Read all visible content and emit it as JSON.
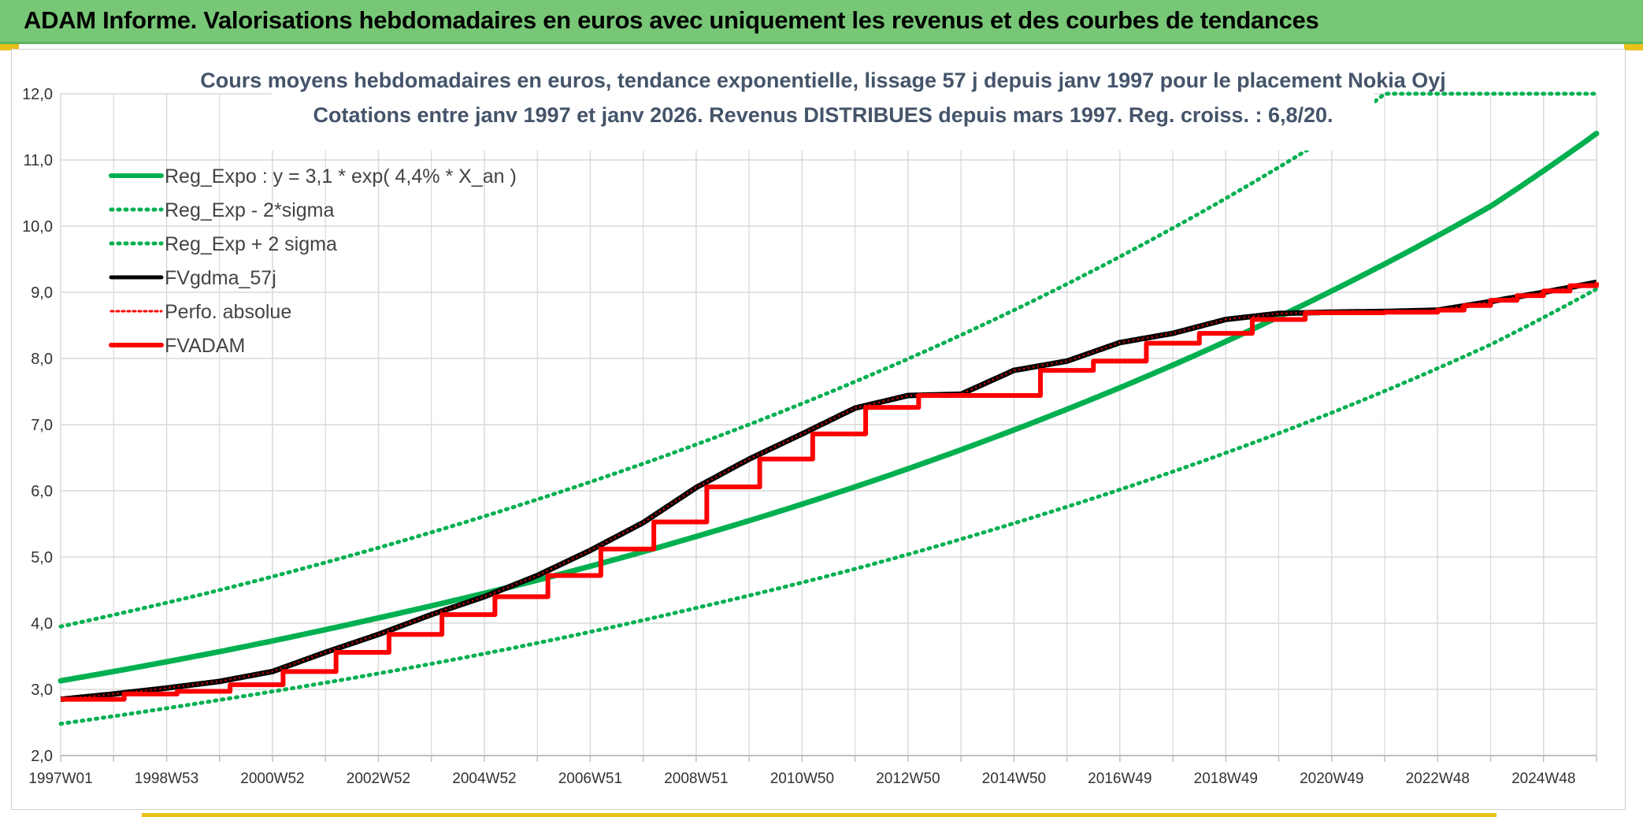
{
  "header": {
    "title": "ADAM Informe. Valorisations hebdomadaires en euros avec uniquement les revenus et des courbes de tendances"
  },
  "colors": {
    "header_bg": "#77c777",
    "green": "#00b050",
    "red": "#ff0000",
    "black": "#000000",
    "grid": "#d9d9d9"
  },
  "chart_data": {
    "type": "line",
    "title_lines": [
      "Cours moyens hebdomadaires en euros, tendance exponentielle, lissage 57 j depuis janv 1997 pour le placement Nokia Oyj",
      "Cotations entre janv 1997 et janv 2026. Revenus DISTRIBUES depuis mars 1997. Reg. croiss. : 6,8/20."
    ],
    "y_ticks": [
      "2,0",
      "3,0",
      "4,0",
      "5,0",
      "6,0",
      "7,0",
      "8,0",
      "9,0",
      "10,0",
      "11,0",
      "12,0"
    ],
    "ylim": [
      2,
      12
    ],
    "x_ticks": [
      {
        "label": "1997W01",
        "year": 1997.0
      },
      {
        "label": "1998W53",
        "year": 1999.0
      },
      {
        "label": "2000W52",
        "year": 2001.0
      },
      {
        "label": "2002W52",
        "year": 2003.0
      },
      {
        "label": "2004W52",
        "year": 2005.0
      },
      {
        "label": "2006W51",
        "year": 2007.0
      },
      {
        "label": "2008W51",
        "year": 2009.0
      },
      {
        "label": "2010W50",
        "year": 2011.0
      },
      {
        "label": "2012W50",
        "year": 2013.0
      },
      {
        "label": "2014W50",
        "year": 2015.0
      },
      {
        "label": "2016W49",
        "year": 2017.0
      },
      {
        "label": "2018W49",
        "year": 2019.0
      },
      {
        "label": "2020W49",
        "year": 2021.0
      },
      {
        "label": "2022W48",
        "year": 2023.0
      },
      {
        "label": "2024W48",
        "year": 2025.0
      }
    ],
    "xlim": [
      1997.0,
      2026.0
    ],
    "grid": true,
    "legend_position": "top-left",
    "series": [
      {
        "name": "Reg_Expo : y = 3,1 * exp( 4,4% *  X_an )",
        "style": "solid-thick",
        "color": "#00b050",
        "x": [
          1997,
          2000,
          2003,
          2006,
          2009,
          2012,
          2015,
          2018,
          2021,
          2024,
          2026
        ],
        "y": [
          3.13,
          3.57,
          4.08,
          4.65,
          5.31,
          6.06,
          6.92,
          7.9,
          9.02,
          10.3,
          11.4
        ]
      },
      {
        "name": "Reg_Exp - 2*sigma",
        "style": "dotted",
        "color": "#00b050",
        "x": [
          1997,
          2000,
          2003,
          2006,
          2009,
          2012,
          2015,
          2018,
          2021,
          2024,
          2026
        ],
        "y": [
          2.48,
          2.84,
          3.24,
          3.7,
          4.23,
          4.82,
          5.51,
          6.29,
          7.18,
          8.21,
          9.05
        ]
      },
      {
        "name": "Reg_Exp + 2 sigma",
        "style": "dotted",
        "color": "#00b050",
        "x": [
          1997,
          2000,
          2003,
          2006,
          2009,
          2012,
          2015,
          2018,
          2021,
          2022,
          2026
        ],
        "y": [
          3.95,
          4.5,
          5.14,
          5.87,
          6.7,
          7.65,
          8.73,
          9.97,
          11.38,
          12.0,
          12.0
        ]
      },
      {
        "name": "FVgdma_57j",
        "style": "solid",
        "color": "#000000",
        "x": [
          1997,
          1998,
          1999,
          2000,
          2001,
          2002,
          2003,
          2004,
          2005,
          2006,
          2007,
          2008,
          2009,
          2010,
          2011,
          2012,
          2013,
          2014,
          2015,
          2016,
          2017,
          2018,
          2019,
          2020,
          2021,
          2022,
          2023,
          2024,
          2025,
          2026
        ],
        "y": [
          2.85,
          2.93,
          3.02,
          3.12,
          3.27,
          3.56,
          3.83,
          4.13,
          4.4,
          4.72,
          5.1,
          5.52,
          6.05,
          6.48,
          6.86,
          7.25,
          7.44,
          7.46,
          7.82,
          7.96,
          8.24,
          8.38,
          8.59,
          8.68,
          8.7,
          8.71,
          8.73,
          8.86,
          9.0,
          9.15
        ]
      },
      {
        "name": "Perfo. absolue",
        "style": "dotted-thin",
        "color": "#ff0000",
        "x": [
          1997,
          1998,
          1999,
          2000,
          2001,
          2002,
          2003,
          2004,
          2005,
          2006,
          2007,
          2008,
          2009,
          2010,
          2011,
          2012,
          2013,
          2014,
          2015,
          2016,
          2017,
          2018,
          2019,
          2020,
          2021,
          2022,
          2023,
          2024,
          2025,
          2026
        ],
        "y": [
          2.85,
          2.93,
          3.02,
          3.12,
          3.27,
          3.56,
          3.83,
          4.13,
          4.4,
          4.72,
          5.1,
          5.52,
          6.05,
          6.48,
          6.86,
          7.25,
          7.44,
          7.46,
          7.82,
          7.96,
          8.24,
          8.38,
          8.59,
          8.68,
          8.7,
          8.71,
          8.73,
          8.86,
          9.0,
          9.15
        ]
      },
      {
        "name": "FVADAM",
        "style": "step-thick",
        "color": "#ff0000",
        "steps": [
          {
            "x": 1997.0,
            "y": 2.85
          },
          {
            "x": 1998.2,
            "y": 2.93
          },
          {
            "x": 1999.2,
            "y": 2.97
          },
          {
            "x": 2000.2,
            "y": 3.07
          },
          {
            "x": 2001.2,
            "y": 3.27
          },
          {
            "x": 2002.2,
            "y": 3.56
          },
          {
            "x": 2003.2,
            "y": 3.83
          },
          {
            "x": 2004.2,
            "y": 4.13
          },
          {
            "x": 2005.2,
            "y": 4.4
          },
          {
            "x": 2006.2,
            "y": 4.72
          },
          {
            "x": 2007.2,
            "y": 5.12
          },
          {
            "x": 2008.2,
            "y": 5.53
          },
          {
            "x": 2009.2,
            "y": 6.06
          },
          {
            "x": 2010.2,
            "y": 6.48
          },
          {
            "x": 2011.2,
            "y": 6.86
          },
          {
            "x": 2012.2,
            "y": 7.26
          },
          {
            "x": 2013.2,
            "y": 7.44
          },
          {
            "x": 2015.5,
            "y": 7.82
          },
          {
            "x": 2016.5,
            "y": 7.96
          },
          {
            "x": 2017.5,
            "y": 8.23
          },
          {
            "x": 2018.5,
            "y": 8.38
          },
          {
            "x": 2019.5,
            "y": 8.59
          },
          {
            "x": 2020.5,
            "y": 8.69
          },
          {
            "x": 2022.0,
            "y": 8.7
          },
          {
            "x": 2023.0,
            "y": 8.73
          },
          {
            "x": 2023.5,
            "y": 8.8
          },
          {
            "x": 2024.0,
            "y": 8.88
          },
          {
            "x": 2024.5,
            "y": 8.95
          },
          {
            "x": 2025.0,
            "y": 9.02
          },
          {
            "x": 2025.5,
            "y": 9.1
          },
          {
            "x": 2026.0,
            "y": 9.15
          }
        ]
      }
    ]
  }
}
